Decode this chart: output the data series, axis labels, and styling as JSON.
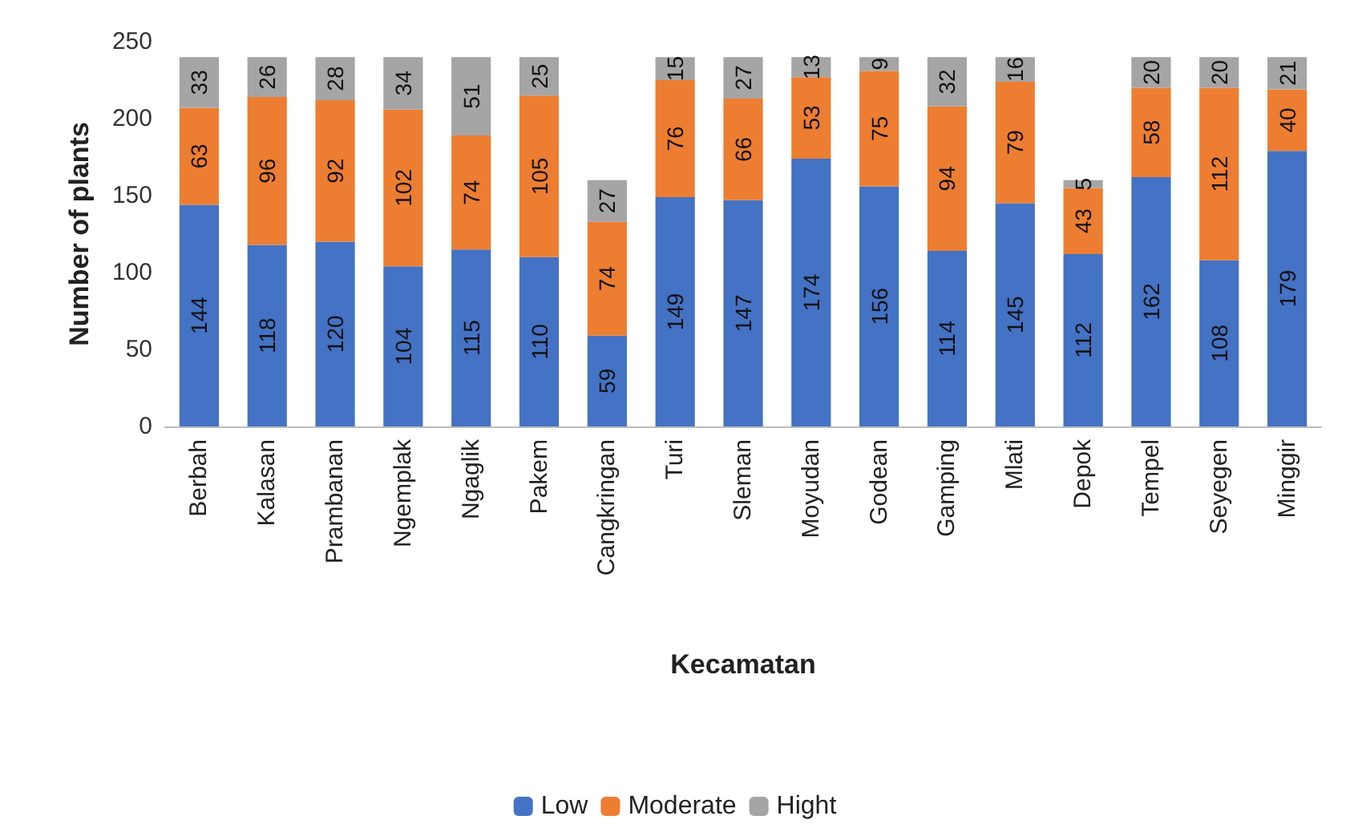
{
  "chart_data": {
    "type": "bar",
    "stacked": true,
    "xlabel": "Kecamatan",
    "ylabel": "Number of plants",
    "categories": [
      "Berbah",
      "Kalasan",
      "Prambanan",
      "Ngemplak",
      "Ngaglik",
      "Pakem",
      "Cangkringan",
      "Turi",
      "Sleman",
      "Moyudan",
      "Godean",
      "Gamping",
      "Mlati",
      "Depok",
      "Tempel",
      "Seyegen",
      "Minggir"
    ],
    "series": [
      {
        "name": "Low",
        "color": "#4472c4",
        "values": [
          144,
          118,
          120,
          104,
          115,
          110,
          59,
          149,
          147,
          174,
          156,
          114,
          145,
          112,
          162,
          108,
          179
        ]
      },
      {
        "name": "Moderate",
        "color": "#ed7d31",
        "values": [
          63,
          96,
          92,
          102,
          74,
          105,
          74,
          76,
          66,
          53,
          75,
          94,
          79,
          43,
          58,
          112,
          40
        ]
      },
      {
        "name": "Hight",
        "color": "#a5a5a5",
        "values": [
          33,
          26,
          28,
          34,
          51,
          25,
          27,
          15,
          27,
          13,
          9,
          32,
          16,
          5,
          20,
          20,
          21
        ]
      }
    ],
    "ylim": [
      0,
      250
    ],
    "yticks": [
      0,
      50,
      100,
      150,
      200,
      250
    ],
    "grid": false,
    "legend": "bottom",
    "data_labels": true
  }
}
